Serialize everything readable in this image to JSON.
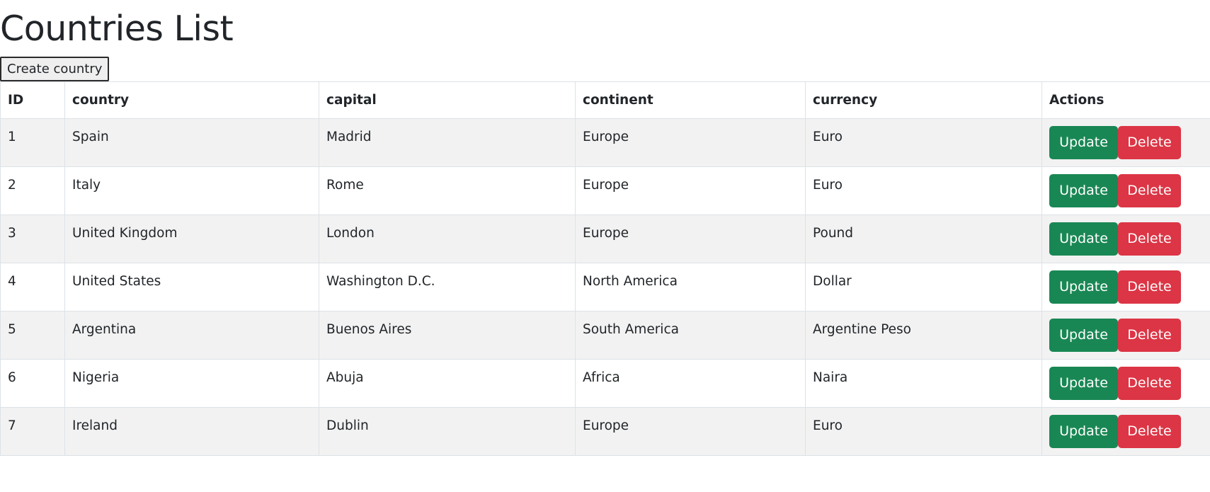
{
  "page": {
    "title": "Countries List",
    "create_button_label": "Create country"
  },
  "table": {
    "headers": [
      "ID",
      "country",
      "capital",
      "continent",
      "currency",
      "Actions"
    ],
    "rows": [
      {
        "id": "1",
        "country": "Spain",
        "capital": "Madrid",
        "continent": "Europe",
        "currency": "Euro"
      },
      {
        "id": "2",
        "country": "Italy",
        "capital": "Rome",
        "continent": "Europe",
        "currency": "Euro"
      },
      {
        "id": "3",
        "country": "United Kingdom",
        "capital": "London",
        "continent": "Europe",
        "currency": "Pound"
      },
      {
        "id": "4",
        "country": "United States",
        "capital": "Washington D.C.",
        "continent": "North America",
        "currency": "Dollar"
      },
      {
        "id": "5",
        "country": "Argentina",
        "capital": "Buenos Aires",
        "continent": "South America",
        "currency": "Argentine Peso"
      },
      {
        "id": "6",
        "country": "Nigeria",
        "capital": "Abuja",
        "continent": "Africa",
        "currency": "Naira"
      },
      {
        "id": "7",
        "country": "Ireland",
        "capital": "Dublin",
        "continent": "Europe",
        "currency": "Euro"
      }
    ],
    "update_label": "Update",
    "delete_label": "Delete"
  },
  "colors": {
    "update_button": "#198754",
    "delete_button": "#dc3545",
    "striped_row": "#f2f2f2",
    "border": "#dee2e6"
  }
}
